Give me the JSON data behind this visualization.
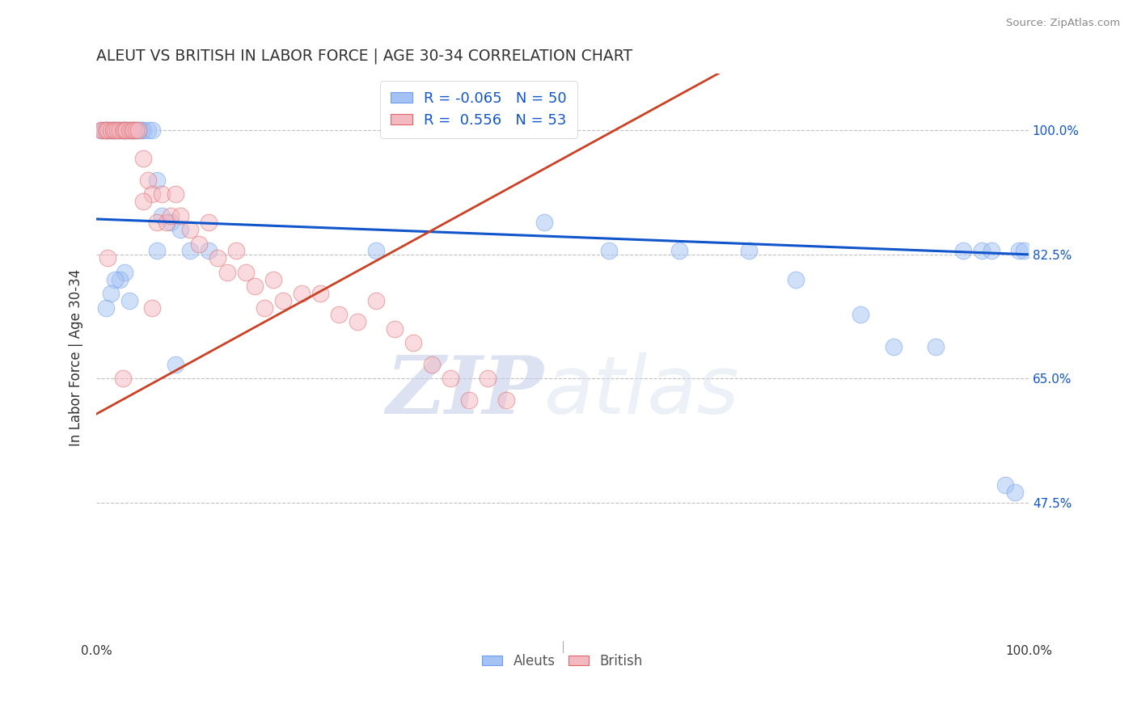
{
  "title": "ALEUT VS BRITISH IN LABOR FORCE | AGE 30-34 CORRELATION CHART",
  "source": "Source: ZipAtlas.com",
  "ylabel": "In Labor Force | Age 30-34",
  "ytick_labels": [
    "47.5%",
    "65.0%",
    "82.5%",
    "100.0%"
  ],
  "ytick_values": [
    0.475,
    0.65,
    0.825,
    1.0
  ],
  "xrange": [
    0.0,
    1.0
  ],
  "yrange": [
    0.28,
    1.08
  ],
  "legend_label1": "Aleuts",
  "legend_label2": "British",
  "R_aleuts": -0.065,
  "N_aleuts": 50,
  "R_british": 0.556,
  "N_british": 53,
  "color_aleuts": "#a4c2f4",
  "color_british": "#f4b8c1",
  "edge_aleuts": "#6d9eeb",
  "edge_british": "#e06666",
  "trendline_color_aleuts": "#1155cc",
  "trendline_color_british": "#cc4125",
  "ytick_color": "#1155cc",
  "watermark_zip": "ZIP",
  "watermark_atlas": "atlas",
  "background_color": "#ffffff",
  "grid_color": "#bbbbbb",
  "aleuts_x": [
    0.005,
    0.01,
    0.012,
    0.015,
    0.018,
    0.02,
    0.022,
    0.025,
    0.028,
    0.03,
    0.032,
    0.035,
    0.038,
    0.04,
    0.042,
    0.045,
    0.048,
    0.05,
    0.055,
    0.06,
    0.065,
    0.07,
    0.08,
    0.09,
    0.1,
    0.03,
    0.025,
    0.02,
    0.015,
    0.01,
    0.3,
    0.48,
    0.55,
    0.625,
    0.7,
    0.75,
    0.82,
    0.855,
    0.9,
    0.93,
    0.95,
    0.96,
    0.975,
    0.985,
    0.99,
    0.995,
    0.12,
    0.065,
    0.085,
    0.035
  ],
  "aleuts_y": [
    1.0,
    1.0,
    1.0,
    1.0,
    1.0,
    1.0,
    1.0,
    1.0,
    1.0,
    1.0,
    1.0,
    1.0,
    1.0,
    1.0,
    1.0,
    1.0,
    1.0,
    1.0,
    1.0,
    1.0,
    0.93,
    0.88,
    0.87,
    0.86,
    0.83,
    0.8,
    0.79,
    0.79,
    0.77,
    0.75,
    0.83,
    0.87,
    0.83,
    0.83,
    0.83,
    0.79,
    0.74,
    0.695,
    0.695,
    0.83,
    0.83,
    0.83,
    0.5,
    0.49,
    0.83,
    0.83,
    0.83,
    0.83,
    0.67,
    0.76
  ],
  "british_x": [
    0.005,
    0.008,
    0.01,
    0.012,
    0.015,
    0.018,
    0.02,
    0.022,
    0.025,
    0.028,
    0.03,
    0.032,
    0.035,
    0.038,
    0.04,
    0.042,
    0.045,
    0.05,
    0.055,
    0.06,
    0.065,
    0.07,
    0.075,
    0.08,
    0.085,
    0.09,
    0.1,
    0.11,
    0.12,
    0.13,
    0.14,
    0.15,
    0.16,
    0.17,
    0.18,
    0.19,
    0.2,
    0.22,
    0.24,
    0.26,
    0.28,
    0.3,
    0.32,
    0.34,
    0.36,
    0.38,
    0.4,
    0.42,
    0.44,
    0.05,
    0.06,
    0.028,
    0.012
  ],
  "british_y": [
    1.0,
    1.0,
    1.0,
    1.0,
    1.0,
    1.0,
    1.0,
    1.0,
    1.0,
    1.0,
    1.0,
    1.0,
    1.0,
    1.0,
    1.0,
    1.0,
    1.0,
    0.96,
    0.93,
    0.91,
    0.87,
    0.91,
    0.87,
    0.88,
    0.91,
    0.88,
    0.86,
    0.84,
    0.87,
    0.82,
    0.8,
    0.83,
    0.8,
    0.78,
    0.75,
    0.79,
    0.76,
    0.77,
    0.77,
    0.74,
    0.73,
    0.76,
    0.72,
    0.7,
    0.67,
    0.65,
    0.62,
    0.65,
    0.62,
    0.9,
    0.75,
    0.65,
    0.82
  ]
}
